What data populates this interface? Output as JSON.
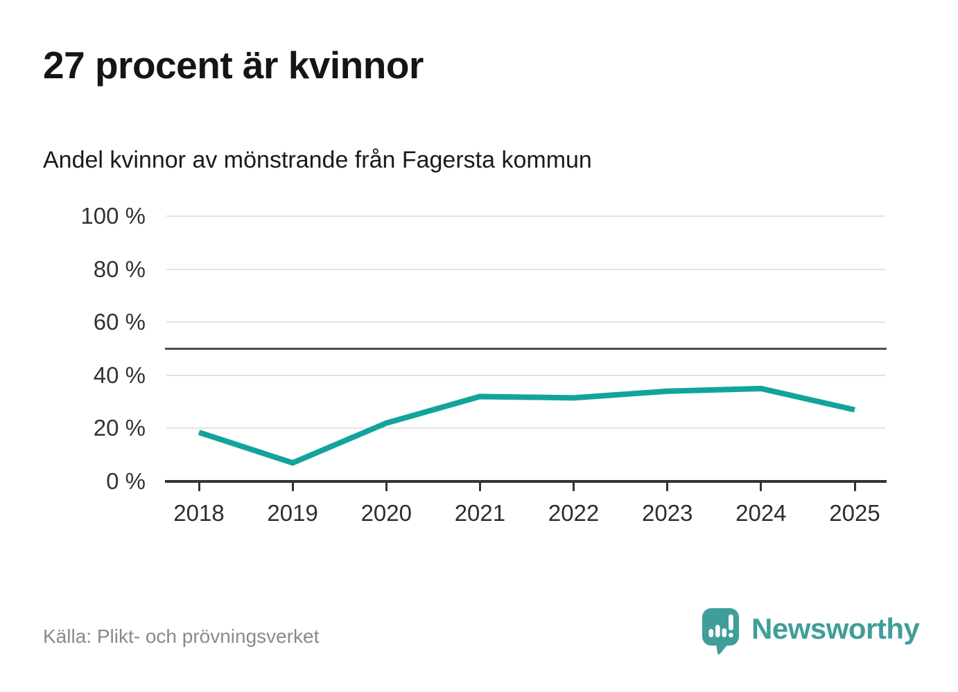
{
  "header": {
    "title": "27 procent är kvinnor",
    "subtitle": "Andel kvinnor av mönstrande från Fagersta kommun"
  },
  "chart_data": {
    "type": "line",
    "title": "27 procent är kvinnor",
    "subtitle": "Andel kvinnor av mönstrande från Fagersta kommun",
    "x": [
      2018,
      2019,
      2020,
      2021,
      2022,
      2023,
      2024,
      2025
    ],
    "series": [
      {
        "name": "Andel kvinnor av mönstrande",
        "values": [
          18.5,
          7,
          22,
          32,
          31.5,
          34,
          35,
          27
        ]
      }
    ],
    "xlabel": "",
    "ylabel": "",
    "ylim": [
      0,
      100
    ],
    "yticks": [
      0,
      20,
      40,
      60,
      80,
      100
    ],
    "ytick_labels": [
      "0 %",
      "20 %",
      "40 %",
      "60 %",
      "80 %",
      "100 %"
    ],
    "reference_line": 50,
    "grid": true,
    "legend": false
  },
  "footer": {
    "source": "Källa: Plikt- och prövningsverket",
    "logo_text": "Newsworthy"
  },
  "colors": {
    "line": "#12a49b",
    "grid": "#e3e3e3",
    "reference": "#4d4d4d",
    "axis": "#333333",
    "logo": "#3f9e99"
  }
}
